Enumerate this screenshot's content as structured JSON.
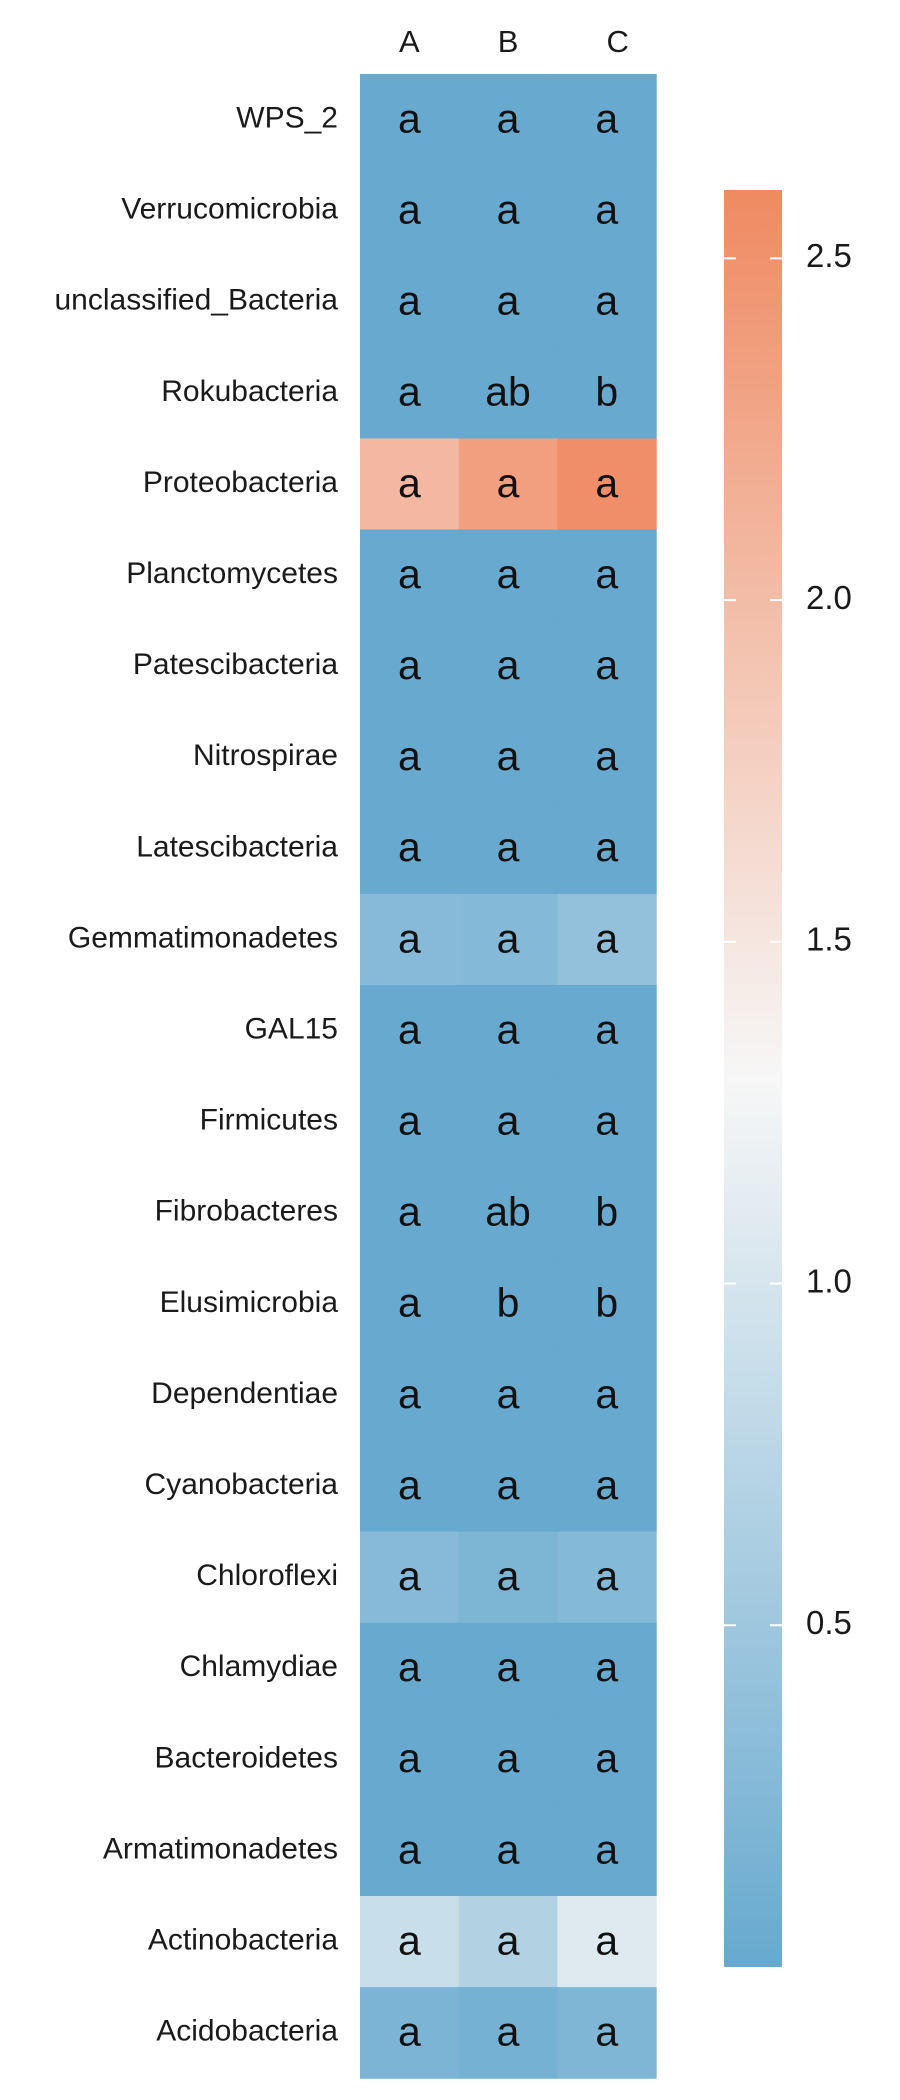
{
  "chart_data": {
    "type": "heatmap",
    "columns": [
      "A",
      "B",
      "C"
    ],
    "rows": [
      "WPS_2",
      "Verrucomicrobia",
      "unclassified_Bacteria",
      "Rokubacteria",
      "Proteobacteria",
      "Planctomycetes",
      "Patescibacteria",
      "Nitrospirae",
      "Latescibacteria",
      "Gemmatimonadetes",
      "GAL15",
      "Firmicutes",
      "Fibrobacteres",
      "Elusimicrobia",
      "Dependentiae",
      "Cyanobacteria",
      "Chloroflexi",
      "Chlamydiae",
      "Bacteroidetes",
      "Armatimonadetes",
      "Actinobacteria",
      "Acidobacteria"
    ],
    "values": [
      [
        0.0,
        0.0,
        0.0
      ],
      [
        0.01,
        0.0,
        0.01
      ],
      [
        0.01,
        0.0,
        0.0
      ],
      [
        0.0,
        0.0,
        0.0
      ],
      [
        2.05,
        2.35,
        2.55
      ],
      [
        0.01,
        0.0,
        0.0
      ],
      [
        0.0,
        0.0,
        0.0
      ],
      [
        0.0,
        0.0,
        0.0
      ],
      [
        0.0,
        0.0,
        0.0
      ],
      [
        0.28,
        0.26,
        0.4
      ],
      [
        0.0,
        0.0,
        0.0
      ],
      [
        0.0,
        0.0,
        0.0
      ],
      [
        0.0,
        0.0,
        0.0
      ],
      [
        0.0,
        0.0,
        0.0
      ],
      [
        0.0,
        0.0,
        0.0
      ],
      [
        0.0,
        0.0,
        0.0
      ],
      [
        0.28,
        0.2,
        0.26
      ],
      [
        0.0,
        0.0,
        0.0
      ],
      [
        0.0,
        0.0,
        0.0
      ],
      [
        0.0,
        0.0,
        0.0
      ],
      [
        0.88,
        0.68,
        1.08
      ],
      [
        0.18,
        0.13,
        0.22
      ]
    ],
    "letters": [
      [
        "a",
        "a",
        "a"
      ],
      [
        "a",
        "a",
        "a"
      ],
      [
        "a",
        "a",
        "a"
      ],
      [
        "a",
        "ab",
        "b"
      ],
      [
        "a",
        "a",
        "a"
      ],
      [
        "a",
        "a",
        "a"
      ],
      [
        "a",
        "a",
        "a"
      ],
      [
        "a",
        "a",
        "a"
      ],
      [
        "a",
        "a",
        "a"
      ],
      [
        "a",
        "a",
        "a"
      ],
      [
        "a",
        "a",
        "a"
      ],
      [
        "a",
        "a",
        "a"
      ],
      [
        "a",
        "ab",
        "b"
      ],
      [
        "a",
        "b",
        "b"
      ],
      [
        "a",
        "a",
        "a"
      ],
      [
        "a",
        "a",
        "a"
      ],
      [
        "a",
        "a",
        "a"
      ],
      [
        "a",
        "a",
        "a"
      ],
      [
        "a",
        "a",
        "a"
      ],
      [
        "a",
        "a",
        "a"
      ],
      [
        "a",
        "a",
        "a"
      ],
      [
        "a",
        "a",
        "a"
      ]
    ],
    "colorbar": {
      "min": 0.0,
      "max": 2.6,
      "ticks": [
        0.5,
        1.0,
        1.5,
        2.0,
        2.5
      ],
      "tick_labels": [
        "0.5",
        "1.0",
        "1.5",
        "2.0",
        "2.5"
      ],
      "low_color": "#67a9cf",
      "mid_color": "#f7f7f7",
      "high_color": "#ef8a62",
      "midpoint": 1.3
    }
  }
}
